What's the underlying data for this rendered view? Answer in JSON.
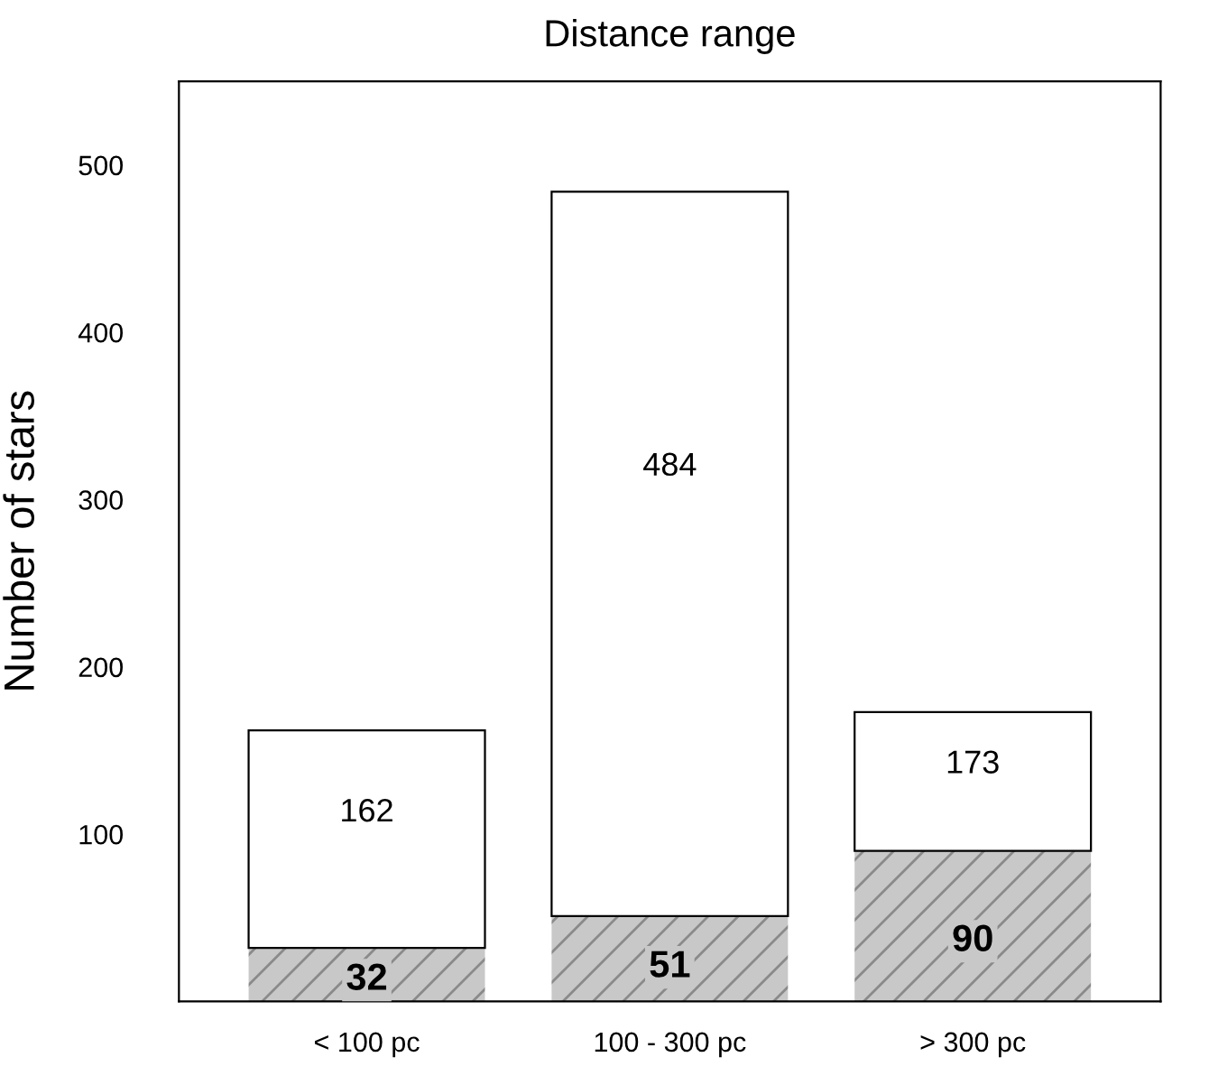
{
  "chart_data": {
    "type": "bar",
    "title": "Distance range",
    "ylabel": "Number of stars",
    "categories": [
      "< 100 pc",
      "100 - 300 pc",
      "> 300 pc"
    ],
    "stacked": true,
    "series": [
      {
        "color": "#c8c8c8",
        "values": [
          32,
          51,
          90
        ],
        "value_labels": [
          "32",
          "51",
          "90"
        ]
      },
      {
        "color": "#ffffff",
        "values": [
          130,
          433,
          83
        ]
      }
    ],
    "totals": [
      "162",
      "484",
      "173"
    ],
    "ylim": [
      0,
      550
    ],
    "yticks": [
      100,
      200,
      300,
      400,
      500
    ],
    "grid": false
  }
}
